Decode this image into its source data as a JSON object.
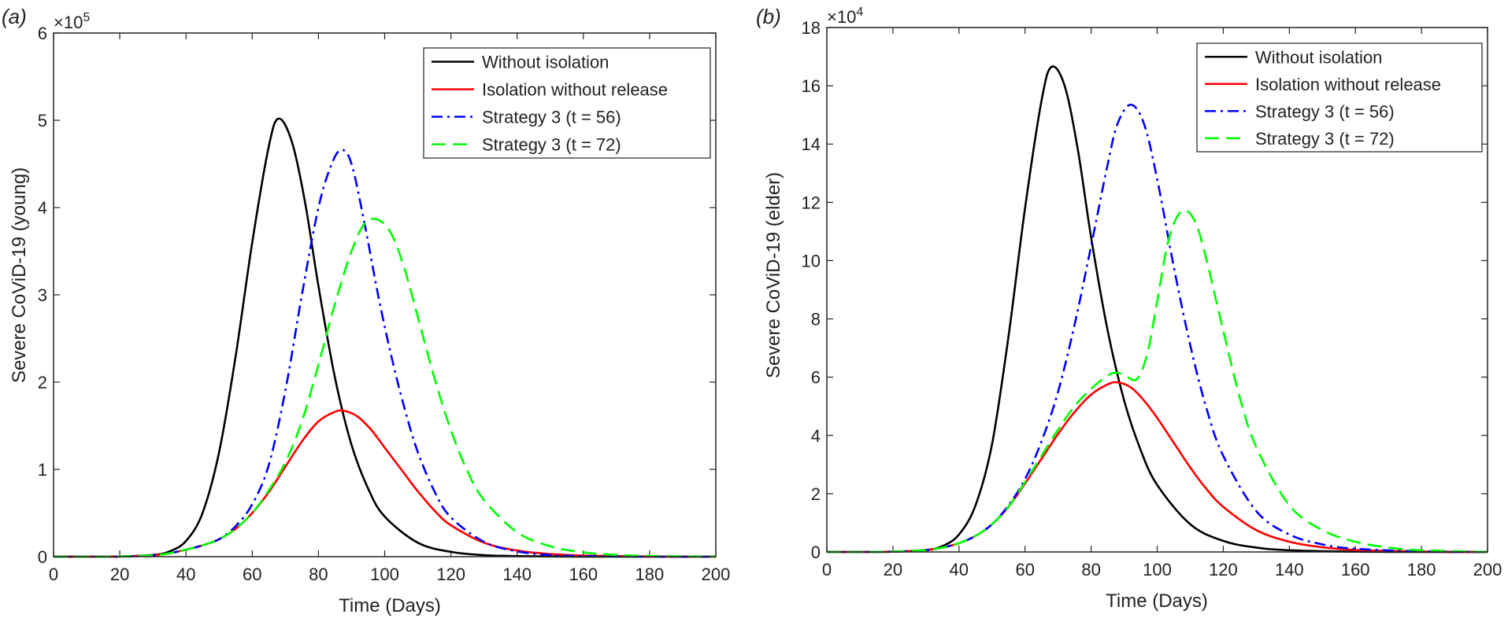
{
  "panels": [
    {
      "label": "(a)",
      "exponent_prefix": "×10",
      "exponent_power": "5"
    },
    {
      "label": "(b)",
      "exponent_prefix": "×10",
      "exponent_power": "4"
    }
  ],
  "colors": {
    "without_isolation": "#000000",
    "isolation_without_release": "#ff0000",
    "strategy3_t56": "#0000ff",
    "strategy3_t72": "#00ff00"
  },
  "chart_data": [
    {
      "type": "line",
      "xlabel": "Time (Days)",
      "ylabel": "Severe CoViD-19 (young)",
      "xlim": [
        0,
        200
      ],
      "ylim": [
        0,
        6
      ],
      "y_scale_note": "×10^5",
      "xticks": [
        "0",
        "20",
        "40",
        "60",
        "80",
        "100",
        "120",
        "140",
        "160",
        "180",
        "200"
      ],
      "yticks": [
        "0",
        "1",
        "2",
        "3",
        "4",
        "5",
        "6"
      ],
      "legend_position": "top-right",
      "grid": false,
      "series": [
        {
          "name": "Without isolation",
          "style": "solid",
          "color": "#000000",
          "x": [
            0,
            10,
            20,
            30,
            35,
            40,
            45,
            50,
            55,
            60,
            65,
            68,
            72,
            76,
            80,
            85,
            90,
            95,
            100,
            110,
            120,
            130,
            140,
            160,
            180,
            200
          ],
          "y": [
            0,
            0,
            0.002,
            0.02,
            0.06,
            0.18,
            0.5,
            1.2,
            2.3,
            3.6,
            4.7,
            5.02,
            4.75,
            4.05,
            3.1,
            2.05,
            1.28,
            0.78,
            0.46,
            0.16,
            0.055,
            0.018,
            0.006,
            0.001,
            0,
            0
          ]
        },
        {
          "name": "Isolation without release",
          "style": "solid",
          "color": "#ff0000",
          "x": [
            0,
            10,
            20,
            30,
            35,
            40,
            45,
            50,
            55,
            60,
            65,
            70,
            75,
            80,
            85,
            88,
            92,
            96,
            100,
            105,
            110,
            115,
            120,
            130,
            140,
            150,
            160,
            180,
            200
          ],
          "y": [
            0,
            0,
            0.002,
            0.015,
            0.04,
            0.08,
            0.13,
            0.2,
            0.32,
            0.5,
            0.74,
            1.03,
            1.32,
            1.55,
            1.66,
            1.67,
            1.6,
            1.45,
            1.25,
            1.0,
            0.75,
            0.53,
            0.36,
            0.16,
            0.07,
            0.03,
            0.013,
            0.002,
            0
          ]
        },
        {
          "name": "Strategy 3 (t = 56)",
          "style": "dashdot",
          "color": "#0000ff",
          "x": [
            0,
            10,
            20,
            30,
            35,
            40,
            45,
            50,
            55,
            60,
            65,
            70,
            75,
            80,
            84,
            87,
            90,
            94,
            98,
            102,
            106,
            110,
            115,
            120,
            130,
            140,
            150,
            160,
            180,
            200
          ],
          "y": [
            0,
            0,
            0.002,
            0.015,
            0.04,
            0.08,
            0.13,
            0.2,
            0.35,
            0.6,
            1.05,
            1.9,
            3.0,
            4.0,
            4.5,
            4.66,
            4.5,
            3.8,
            3.0,
            2.3,
            1.7,
            1.2,
            0.75,
            0.45,
            0.17,
            0.06,
            0.02,
            0.007,
            0,
            0
          ]
        },
        {
          "name": "Strategy 3 (t = 72)",
          "style": "dashed",
          "color": "#00ff00",
          "x": [
            0,
            10,
            20,
            30,
            35,
            40,
            45,
            50,
            55,
            60,
            65,
            70,
            75,
            80,
            85,
            90,
            94,
            98,
            102,
            106,
            110,
            115,
            120,
            125,
            130,
            140,
            150,
            160,
            170,
            180,
            200
          ],
          "y": [
            0,
            0,
            0.002,
            0.015,
            0.04,
            0.08,
            0.13,
            0.2,
            0.32,
            0.5,
            0.76,
            1.08,
            1.55,
            2.2,
            2.9,
            3.5,
            3.82,
            3.86,
            3.7,
            3.3,
            2.75,
            2.05,
            1.45,
            0.98,
            0.65,
            0.28,
            0.12,
            0.05,
            0.02,
            0.008,
            0
          ]
        }
      ]
    },
    {
      "type": "line",
      "xlabel": "Time (Days)",
      "ylabel": "Severe CoViD-19 (elder)",
      "xlim": [
        0,
        200
      ],
      "ylim": [
        0,
        18
      ],
      "y_scale_note": "×10^4",
      "xticks": [
        "0",
        "20",
        "40",
        "60",
        "80",
        "100",
        "120",
        "140",
        "160",
        "180",
        "200"
      ],
      "yticks": [
        "0",
        "2",
        "4",
        "6",
        "8",
        "10",
        "12",
        "14",
        "16",
        "18"
      ],
      "legend_position": "top-right",
      "grid": false,
      "series": [
        {
          "name": "Without isolation",
          "style": "solid",
          "color": "#000000",
          "x": [
            0,
            10,
            20,
            30,
            35,
            40,
            45,
            50,
            55,
            60,
            65,
            68,
            72,
            76,
            80,
            85,
            90,
            95,
            100,
            110,
            120,
            130,
            140,
            160,
            180,
            200
          ],
          "y": [
            0,
            0,
            0.01,
            0.07,
            0.2,
            0.6,
            1.6,
            3.7,
            7.4,
            11.8,
            15.5,
            16.65,
            16.0,
            13.8,
            10.8,
            7.6,
            5.2,
            3.5,
            2.3,
            0.95,
            0.38,
            0.15,
            0.06,
            0.01,
            0,
            0
          ]
        },
        {
          "name": "Isolation without release",
          "style": "solid",
          "color": "#ff0000",
          "x": [
            0,
            10,
            20,
            30,
            35,
            40,
            45,
            50,
            55,
            60,
            65,
            70,
            75,
            80,
            85,
            88,
            92,
            96,
            100,
            105,
            110,
            115,
            120,
            130,
            140,
            150,
            160,
            180,
            200
          ],
          "y": [
            0,
            0,
            0.01,
            0.06,
            0.15,
            0.3,
            0.55,
            0.95,
            1.55,
            2.35,
            3.2,
            4.05,
            4.8,
            5.4,
            5.75,
            5.82,
            5.65,
            5.2,
            4.6,
            3.75,
            2.9,
            2.15,
            1.55,
            0.75,
            0.35,
            0.16,
            0.07,
            0.015,
            0
          ]
        },
        {
          "name": "Strategy 3 (t = 56)",
          "style": "dashdot",
          "color": "#0000ff",
          "x": [
            0,
            10,
            20,
            30,
            35,
            40,
            45,
            50,
            55,
            60,
            65,
            70,
            75,
            80,
            85,
            88,
            92,
            96,
            100,
            105,
            110,
            115,
            120,
            130,
            140,
            150,
            160,
            180,
            200
          ],
          "y": [
            0,
            0,
            0.01,
            0.06,
            0.15,
            0.3,
            0.55,
            0.95,
            1.6,
            2.5,
            3.8,
            5.5,
            7.8,
            10.5,
            13.3,
            14.7,
            15.35,
            14.7,
            12.8,
            9.8,
            7.1,
            4.9,
            3.3,
            1.4,
            0.6,
            0.26,
            0.11,
            0.02,
            0
          ]
        },
        {
          "name": "Strategy 3 (t = 72)",
          "style": "dashed",
          "color": "#00ff00",
          "x": [
            0,
            10,
            20,
            30,
            35,
            40,
            45,
            50,
            55,
            60,
            65,
            70,
            75,
            80,
            85,
            88,
            91,
            94,
            97,
            100,
            103,
            106,
            109,
            112,
            115,
            120,
            125,
            130,
            140,
            150,
            160,
            170,
            180,
            200
          ],
          "y": [
            0,
            0,
            0.01,
            0.06,
            0.15,
            0.3,
            0.55,
            0.95,
            1.55,
            2.4,
            3.3,
            4.2,
            5.0,
            5.6,
            6.05,
            6.15,
            6.0,
            5.95,
            6.8,
            8.6,
            10.5,
            11.5,
            11.7,
            11.2,
            10.0,
            7.6,
            5.3,
            3.6,
            1.6,
            0.75,
            0.35,
            0.15,
            0.06,
            0
          ]
        }
      ]
    }
  ]
}
